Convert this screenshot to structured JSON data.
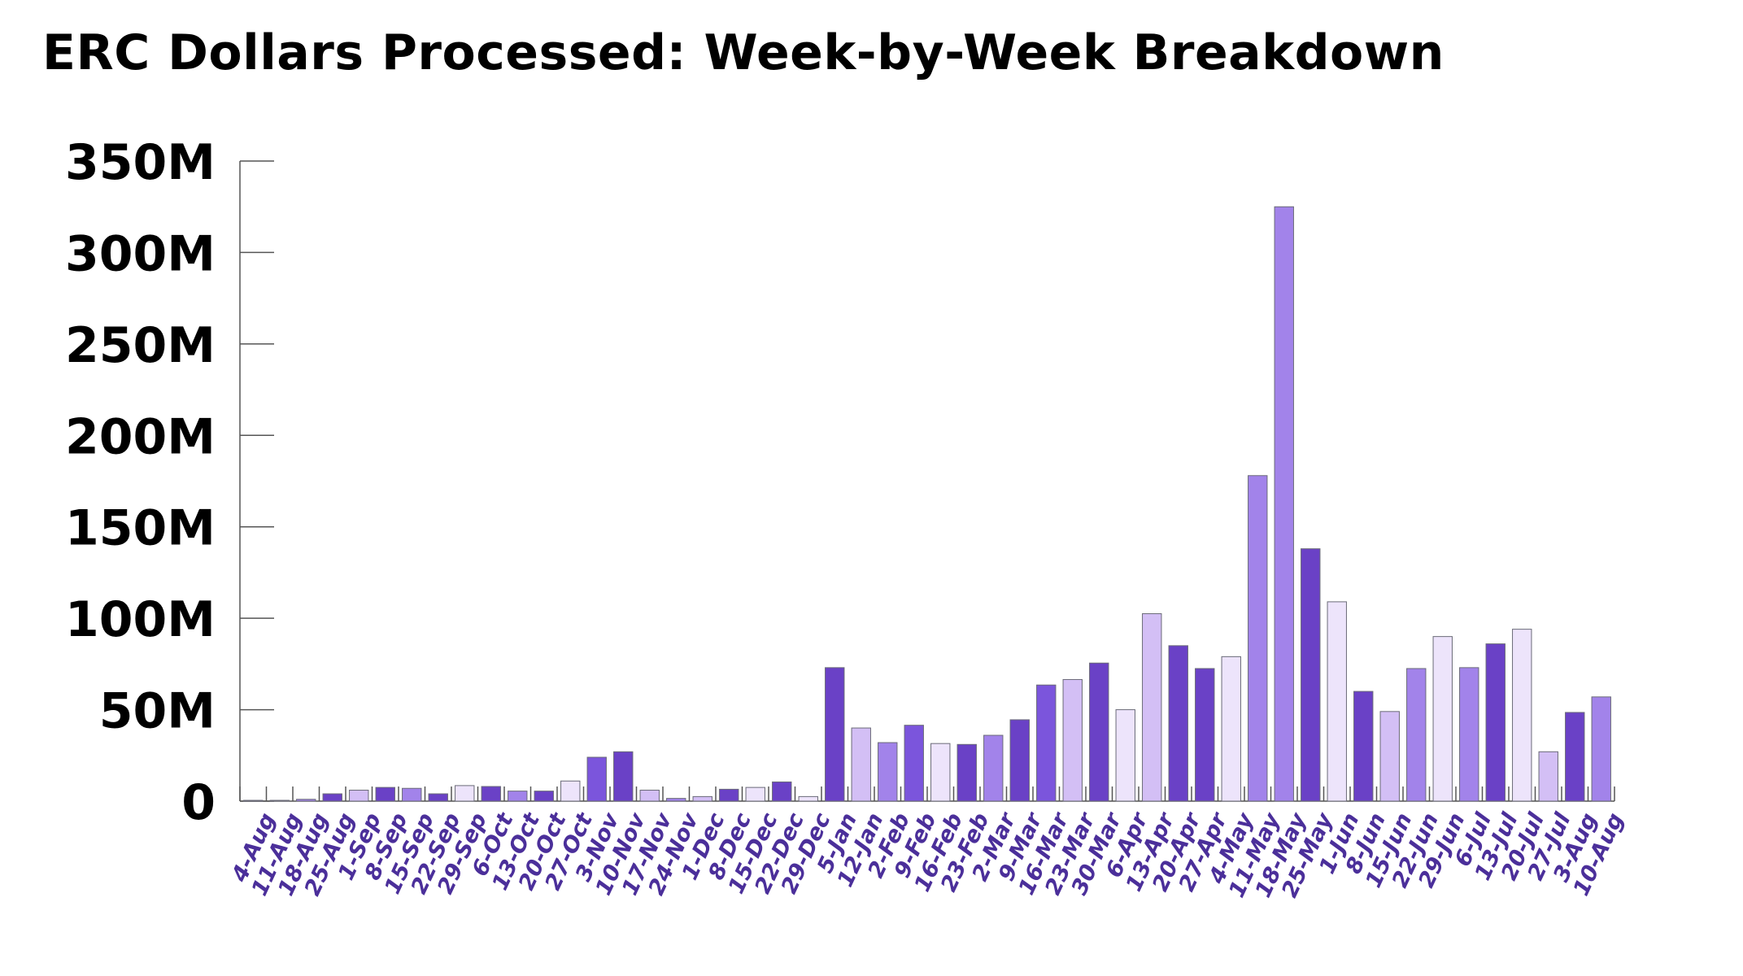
{
  "chart_data": {
    "type": "bar",
    "title": "ERC Dollars Processed: Week-by-Week Breakdown",
    "xlabel": "",
    "ylabel": "",
    "ylim": [
      0,
      350000000
    ],
    "grid": false,
    "yticks": [
      {
        "value": 0,
        "label": "0"
      },
      {
        "value": 50000000,
        "label": "50M"
      },
      {
        "value": 100000000,
        "label": "100M"
      },
      {
        "value": 150000000,
        "label": "150M"
      },
      {
        "value": 200000000,
        "label": "200M"
      },
      {
        "value": 250000000,
        "label": "250M"
      },
      {
        "value": 300000000,
        "label": "300M"
      },
      {
        "value": 350000000,
        "label": "350M"
      }
    ],
    "palette": [
      "#ede4fb",
      "#d3bff5",
      "#a283ea",
      "#7b55dc",
      "#6a41c6"
    ],
    "categories": [
      "4-Aug",
      "11-Aug",
      "18-Aug",
      "25-Aug",
      "1-Sep",
      "8-Sep",
      "15-Sep",
      "22-Sep",
      "29-Sep",
      "6-Oct",
      "13-Oct",
      "20-Oct",
      "27-Oct",
      "3-Nov",
      "10-Nov",
      "17-Nov",
      "24-Nov",
      "1-Dec",
      "8-Dec",
      "15-Dec",
      "22-Dec",
      "29-Dec",
      "5-Jan",
      "12-Jan",
      "2-Feb",
      "9-Feb",
      "16-Feb",
      "23-Feb",
      "2-Mar",
      "9-Mar",
      "16-Mar",
      "23-Mar",
      "30-Mar",
      "6-Apr",
      "13-Apr",
      "20-Apr",
      "27-Apr",
      "4-May",
      "11-May",
      "18-May",
      "25-May",
      "1-Jun",
      "8-Jun",
      "15-Jun",
      "22-Jun",
      "29-Jun",
      "6-Jul",
      "13-Jul",
      "20-Jul",
      "27-Jul",
      "3-Aug",
      "10-Aug"
    ],
    "values": [
      300000,
      400000,
      1000000,
      4000000,
      6000000,
      7500000,
      7000000,
      4000000,
      8500000,
      8000000,
      5500000,
      5500000,
      11000000,
      24000000,
      27000000,
      6000000,
      1500000,
      2500000,
      6500000,
      7500000,
      10500000,
      2500000,
      73000000,
      40000000,
      32000000,
      41500000,
      31500000,
      31000000,
      36000000,
      44500000,
      63500000,
      66500000,
      75500000,
      50000000,
      102500000,
      85000000,
      72500000,
      79000000,
      178000000,
      325000000,
      138000000,
      109000000,
      60000000,
      49000000,
      72500000,
      90000000,
      73000000,
      86000000,
      94000000,
      27000000,
      48500000,
      57000000
    ],
    "bar_color_index": [
      0,
      1,
      2,
      4,
      1,
      4,
      2,
      4,
      0,
      4,
      2,
      4,
      0,
      3,
      4,
      1,
      2,
      1,
      4,
      0,
      4,
      0,
      4,
      1,
      2,
      3,
      0,
      4,
      2,
      4,
      3,
      1,
      4,
      0,
      1,
      4,
      4,
      0,
      2,
      2,
      4,
      0,
      4,
      1,
      2,
      0,
      2,
      4,
      0,
      1,
      4,
      2
    ]
  }
}
